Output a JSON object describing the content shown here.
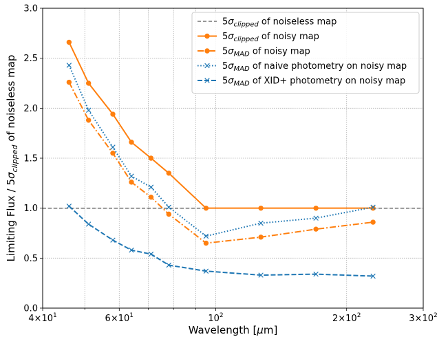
{
  "chart_data": {
    "type": "line",
    "xscale": "log",
    "xlim": [
      40,
      300
    ],
    "ylim": [
      0.0,
      3.0
    ],
    "grid": true,
    "legend_placement": "top-right",
    "xlabel_parts": [
      "Wavelength [",
      "μ",
      "m]"
    ],
    "ylabel_parts": [
      "Limiting Flux / 5",
      "σ",
      "clipped",
      " of noiseless map"
    ],
    "xticks": [
      {
        "value": 40,
        "mantissa": "4",
        "exponent": "1"
      },
      {
        "value": 60,
        "mantissa": "6",
        "exponent": "1"
      },
      {
        "value": 100,
        "mantissa": "",
        "exponent": "2"
      },
      {
        "value": 200,
        "mantissa": "2",
        "exponent": "2"
      },
      {
        "value": 300,
        "mantissa": "3",
        "exponent": "2"
      }
    ],
    "yticks": [
      "0.0",
      "0.5",
      "1.0",
      "1.5",
      "2.0",
      "2.5",
      "3.0"
    ],
    "reference_line": {
      "y": 1.0,
      "color": "#595959",
      "legend": {
        "pre": "5",
        "sigma": "σ",
        "sub": "clipped",
        "post": " of noiseless map"
      }
    },
    "series": [
      {
        "legend": {
          "pre": "5",
          "sigma": "σ",
          "sub": "clipped",
          "post": " of noisy map"
        },
        "color": "#ff7f0e",
        "line_style": "solid",
        "marker": "circle",
        "x": [
          46,
          51,
          58,
          64,
          71,
          78,
          95,
          127,
          170,
          230
        ],
        "y": [
          2.66,
          2.25,
          1.94,
          1.66,
          1.5,
          1.35,
          1.0,
          1.0,
          1.0,
          1.0
        ]
      },
      {
        "legend": {
          "pre": "5",
          "sigma": "σ",
          "sub": "MAD",
          "post": " of noisy map"
        },
        "color": "#ff7f0e",
        "line_style": "dashdot",
        "marker": "circle",
        "x": [
          46,
          51,
          58,
          64,
          71,
          78,
          95,
          127,
          170,
          230
        ],
        "y": [
          2.26,
          1.88,
          1.55,
          1.26,
          1.11,
          0.94,
          0.65,
          0.71,
          0.79,
          0.86
        ]
      },
      {
        "legend": {
          "pre": "5",
          "sigma": "σ",
          "sub": "MAD",
          "post": " of naive photometry on noisy map"
        },
        "color": "#1f77b4",
        "line_style": "dotted",
        "marker": "x",
        "x": [
          46,
          51,
          58,
          64,
          71,
          78,
          95,
          127,
          170,
          230
        ],
        "y": [
          2.43,
          1.98,
          1.61,
          1.32,
          1.21,
          1.01,
          0.72,
          0.85,
          0.9,
          1.01
        ]
      },
      {
        "legend": {
          "pre": "5",
          "sigma": "σ",
          "sub": "MAD",
          "post": " of XID+ photometry on noisy map"
        },
        "color": "#1f77b4",
        "line_style": "dashed",
        "marker": "x",
        "x": [
          46,
          51,
          58,
          64,
          71,
          78,
          95,
          127,
          170,
          230
        ],
        "y": [
          1.02,
          0.84,
          0.68,
          0.58,
          0.54,
          0.43,
          0.37,
          0.33,
          0.34,
          0.32
        ]
      }
    ]
  }
}
